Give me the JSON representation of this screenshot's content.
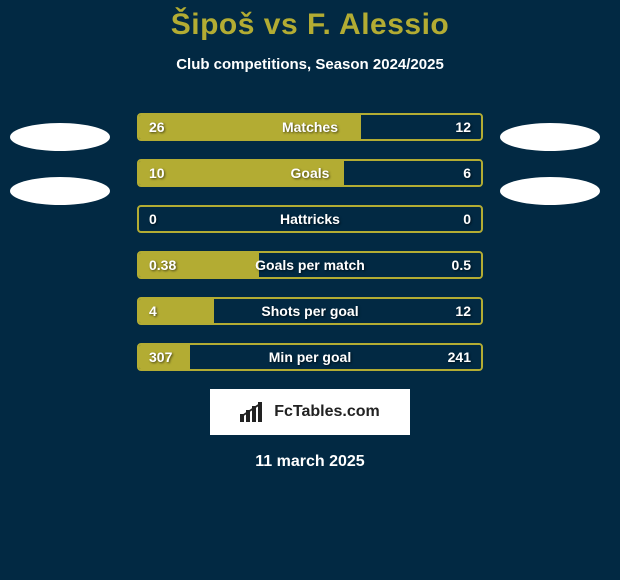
{
  "page_bg": "#022943",
  "title": "Šipoš vs F. Alessio",
  "title_color": "#b3ac33",
  "subtitle": "Club competitions, Season 2024/2025",
  "badge_text": "FcTables.com",
  "date": "11 march 2025",
  "colors": {
    "left": "#b3ac33",
    "right": "#022943",
    "row_border": "#b3ac33"
  },
  "stats": [
    {
      "label": "Matches",
      "left_val": "26",
      "right_val": "12",
      "left_pct": 65,
      "right_pct": 35
    },
    {
      "label": "Goals",
      "left_val": "10",
      "right_val": "6",
      "left_pct": 60,
      "right_pct": 40
    },
    {
      "label": "Hattricks",
      "left_val": "0",
      "right_val": "0",
      "left_pct": 0,
      "right_pct": 0
    },
    {
      "label": "Goals per match",
      "left_val": "0.38",
      "right_val": "0.5",
      "left_pct": 35,
      "right_pct": 65
    },
    {
      "label": "Shots per goal",
      "left_val": "4",
      "right_val": "12",
      "left_pct": 22,
      "right_pct": 78
    },
    {
      "label": "Min per goal",
      "left_val": "307",
      "right_val": "241",
      "left_pct": 15,
      "right_pct": 85
    }
  ]
}
